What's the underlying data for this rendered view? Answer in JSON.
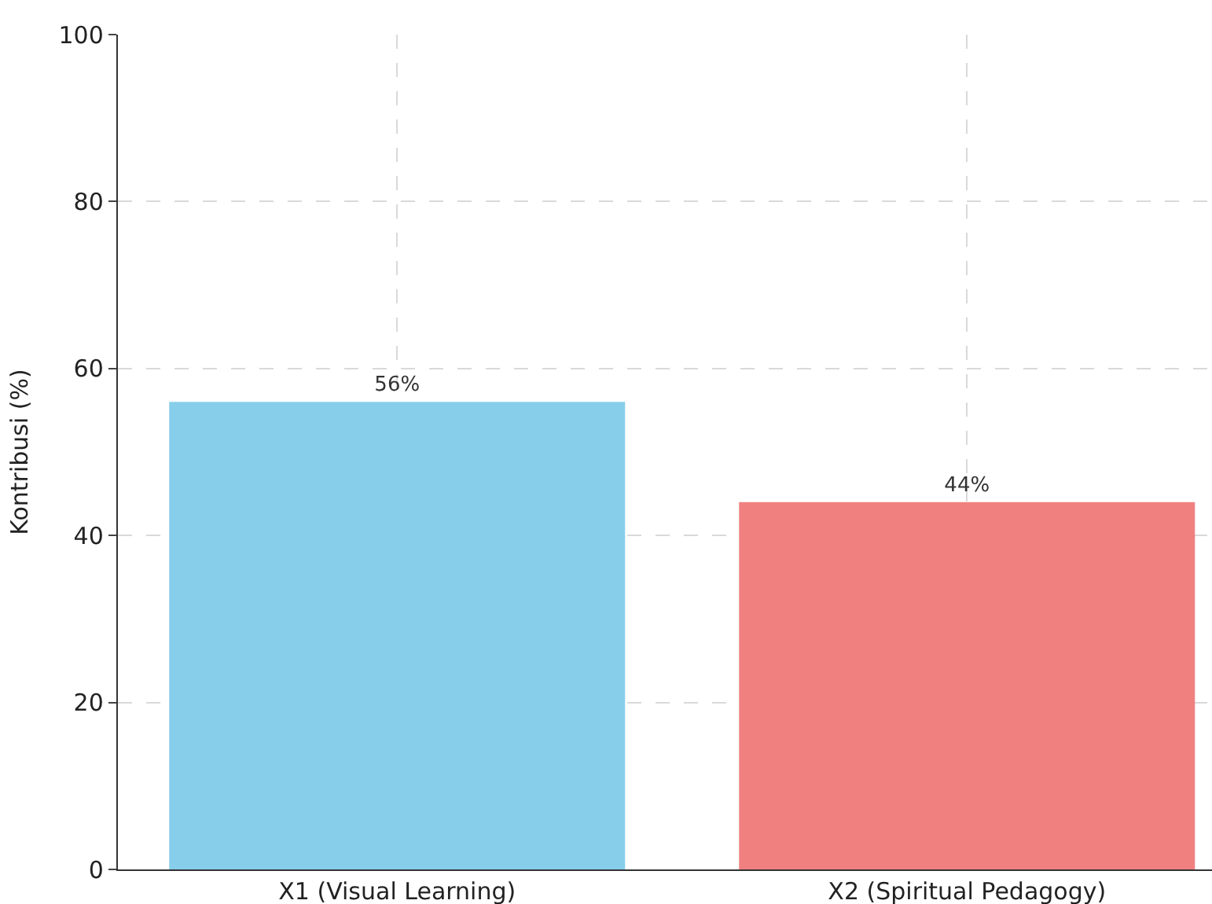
{
  "chart_data": {
    "type": "bar",
    "ylabel": "Kontribusi (%)",
    "categories": [
      "X1 (Visual Learning)",
      "X2 (Spiritual Pedagogy)"
    ],
    "values": [
      56,
      44
    ],
    "colors": [
      "#87ceeb",
      "#f08080"
    ],
    "value_labels": [
      "56%",
      "44%"
    ],
    "ylim": [
      0,
      100
    ],
    "yticks": [
      0,
      20,
      40,
      60,
      80,
      100
    ],
    "grid": true
  }
}
